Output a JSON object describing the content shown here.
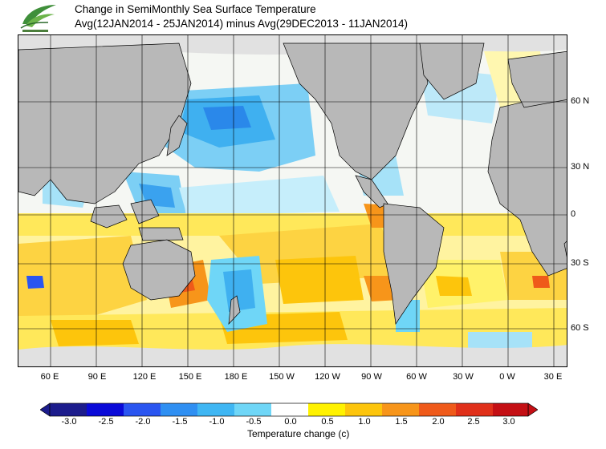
{
  "header": {
    "title_line1": "Change in SemiMonthly Sea Surface Temperature",
    "title_line2": "Avg(12JAN2014 - 25JAN2014) minus Avg(29DEC2013 - 11JAN2014)",
    "logo_icon": "wave-leaf-logo-icon"
  },
  "map": {
    "projection": "equirectangular, centered near 180",
    "lon_labels": [
      "60 E",
      "90 E",
      "120 E",
      "150 E",
      "180 E",
      "150 W",
      "120 W",
      "90 W",
      "60 W",
      "30 W",
      "0 W",
      "30 E"
    ],
    "lat_labels": [
      "60 N",
      "30 N",
      "0",
      "30 S",
      "60 S"
    ],
    "grid": true,
    "land_color": "#b8b8b8",
    "ice_color": "#e1e1e1",
    "notable_features": [
      "cooling across North Pacific",
      "widespread warming across Southern Hemisphere oceans",
      "warm anomaly off eastern Australia"
    ]
  },
  "colorbar": {
    "ticks": [
      "-3.0",
      "-2.5",
      "-2.0",
      "-1.5",
      "-1.0",
      "-0.5",
      "0.0",
      "0.5",
      "1.0",
      "1.5",
      "2.0",
      "2.5",
      "3.0"
    ],
    "colors": [
      "#1c1c8c",
      "#0a0ad8",
      "#2a55f0",
      "#2f8ff2",
      "#3fb6f3",
      "#6fd6f7",
      "#ffffff",
      "#fff200",
      "#fdc50c",
      "#f7951a",
      "#ef5a1a",
      "#e0301a",
      "#c40f14"
    ],
    "title": "Temperature change  (c)"
  }
}
